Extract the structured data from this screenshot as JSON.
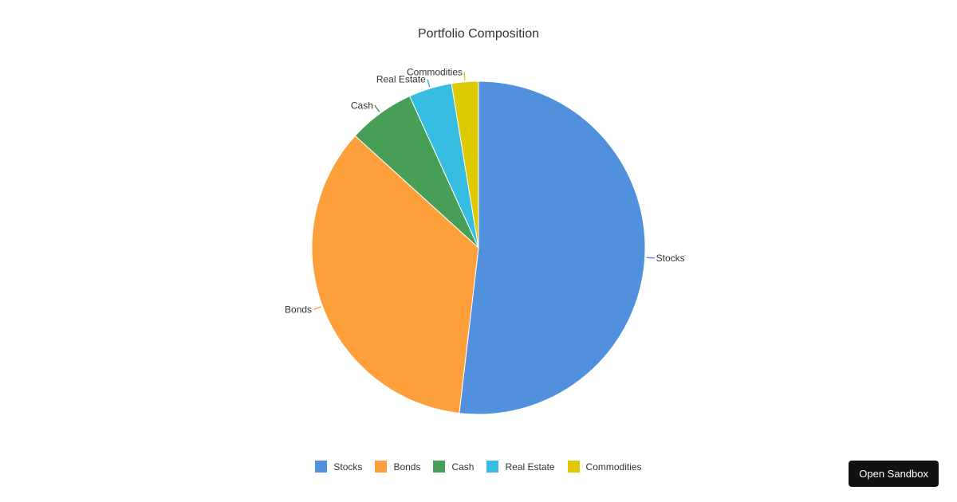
{
  "chart_data": {
    "type": "pie",
    "title": "Portfolio Composition",
    "slices": [
      {
        "label": "Stocks",
        "value": 52,
        "color": "#5190dd"
      },
      {
        "label": "Bonds",
        "value": 35,
        "color": "#fda03b"
      },
      {
        "label": "Cash",
        "value": 6.5,
        "color": "#479f57"
      },
      {
        "label": "Real Estate",
        "value": 4.2,
        "color": "#38bde2"
      },
      {
        "label": "Commodities",
        "value": 2.6,
        "color": "#ddca00"
      }
    ],
    "legend_position": "bottom"
  },
  "ui": {
    "sandbox_button_label": "Open Sandbox"
  }
}
